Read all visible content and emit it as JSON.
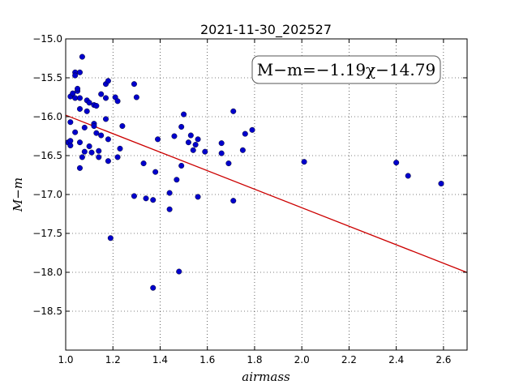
{
  "chart_data": {
    "type": "scatter",
    "title": "2021-11-30_202527",
    "xlabel": "airmass",
    "ylabel": "M−m",
    "xlim": [
      1.0,
      2.7
    ],
    "ylim": [
      -19.0,
      -15.0
    ],
    "y_inverted": true,
    "grid": true,
    "x_ticks": [
      "1.0",
      "1.2",
      "1.4",
      "1.6",
      "1.8",
      "2.0",
      "2.2",
      "2.4",
      "2.6"
    ],
    "y_ticks": [
      "−15.0",
      "−15.5",
      "−16.0",
      "−16.5",
      "−17.0",
      "−17.5",
      "−18.0",
      "−18.5"
    ],
    "annotation": "M−m=−1.19χ−14.79",
    "fit_line": {
      "slope": -1.19,
      "intercept": -14.79,
      "color": "#cc0000"
    },
    "marker_color": "#0000cc",
    "points": [
      [
        1.01,
        -16.33
      ],
      [
        1.02,
        -16.37
      ],
      [
        1.02,
        -16.31
      ],
      [
        1.02,
        -16.07
      ],
      [
        1.02,
        -15.74
      ],
      [
        1.03,
        -15.7
      ],
      [
        1.04,
        -15.43
      ],
      [
        1.04,
        -15.47
      ],
      [
        1.04,
        -15.76
      ],
      [
        1.05,
        -15.67
      ],
      [
        1.05,
        -15.64
      ],
      [
        1.04,
        -16.2
      ],
      [
        1.06,
        -15.9
      ],
      [
        1.06,
        -15.76
      ],
      [
        1.06,
        -15.43
      ],
      [
        1.07,
        -15.23
      ],
      [
        1.06,
        -16.33
      ],
      [
        1.06,
        -16.66
      ],
      [
        1.07,
        -16.52
      ],
      [
        1.08,
        -16.45
      ],
      [
        1.08,
        -16.14
      ],
      [
        1.09,
        -15.93
      ],
      [
        1.09,
        -15.79
      ],
      [
        1.1,
        -16.38
      ],
      [
        1.1,
        -15.82
      ],
      [
        1.11,
        -16.46
      ],
      [
        1.12,
        -16.09
      ],
      [
        1.12,
        -15.85
      ],
      [
        1.13,
        -15.86
      ],
      [
        1.12,
        -16.12
      ],
      [
        1.13,
        -16.21
      ],
      [
        1.14,
        -16.44
      ],
      [
        1.14,
        -16.52
      ],
      [
        1.15,
        -15.71
      ],
      [
        1.15,
        -16.24
      ],
      [
        1.17,
        -15.58
      ],
      [
        1.17,
        -15.76
      ],
      [
        1.17,
        -16.03
      ],
      [
        1.18,
        -15.54
      ],
      [
        1.18,
        -16.29
      ],
      [
        1.18,
        -16.57
      ],
      [
        1.19,
        -17.56
      ],
      [
        1.21,
        -15.75
      ],
      [
        1.22,
        -15.8
      ],
      [
        1.22,
        -16.52
      ],
      [
        1.23,
        -16.41
      ],
      [
        1.24,
        -16.12
      ],
      [
        1.29,
        -15.58
      ],
      [
        1.3,
        -15.75
      ],
      [
        1.29,
        -17.02
      ],
      [
        1.33,
        -16.6
      ],
      [
        1.34,
        -17.05
      ],
      [
        1.37,
        -17.07
      ],
      [
        1.38,
        -16.71
      ],
      [
        1.37,
        -18.2
      ],
      [
        1.39,
        -16.29
      ],
      [
        1.44,
        -16.98
      ],
      [
        1.44,
        -17.19
      ],
      [
        1.46,
        -16.25
      ],
      [
        1.47,
        -16.81
      ],
      [
        1.48,
        -17.99
      ],
      [
        1.49,
        -16.13
      ],
      [
        1.49,
        -16.63
      ],
      [
        1.5,
        -15.97
      ],
      [
        1.52,
        -16.33
      ],
      [
        1.53,
        -16.24
      ],
      [
        1.54,
        -16.43
      ],
      [
        1.55,
        -16.36
      ],
      [
        1.56,
        -16.29
      ],
      [
        1.56,
        -17.03
      ],
      [
        1.59,
        -16.45
      ],
      [
        1.66,
        -16.34
      ],
      [
        1.66,
        -16.47
      ],
      [
        1.69,
        -16.6
      ],
      [
        1.71,
        -15.93
      ],
      [
        1.71,
        -17.08
      ],
      [
        1.75,
        -16.43
      ],
      [
        1.76,
        -16.22
      ],
      [
        1.79,
        -16.17
      ],
      [
        2.01,
        -16.58
      ],
      [
        2.4,
        -16.59
      ],
      [
        2.45,
        -16.76
      ],
      [
        2.59,
        -16.86
      ]
    ]
  }
}
